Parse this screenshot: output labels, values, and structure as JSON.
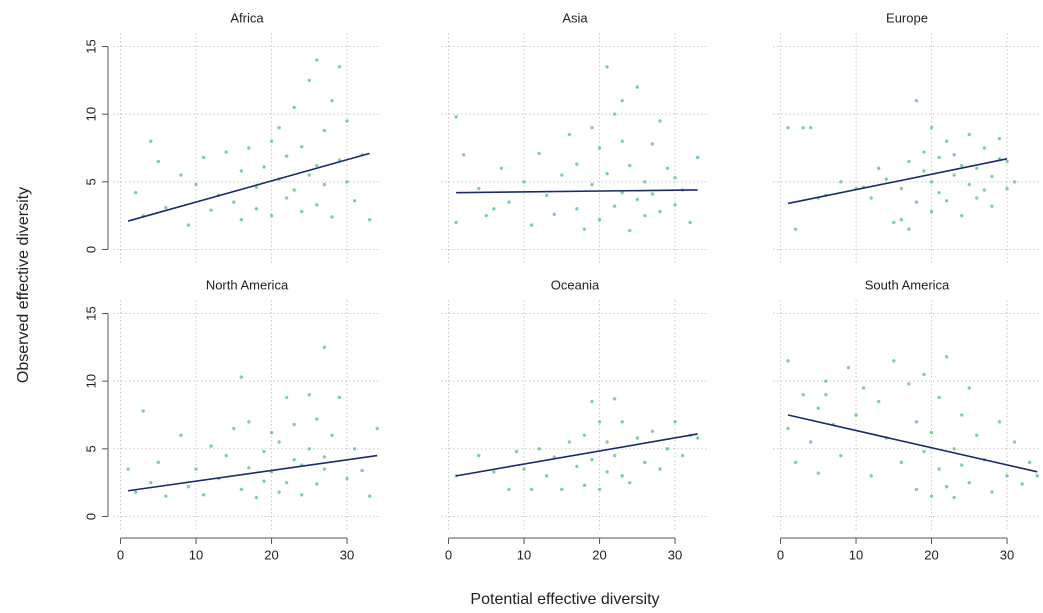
{
  "xlabel": "Potential effective diversity",
  "ylabel": "Observed effective diversity",
  "xlim": [
    -1,
    34.5
  ],
  "ylim": [
    -1,
    16
  ],
  "xticks": [
    0,
    10,
    20,
    30
  ],
  "yticks": [
    0,
    5,
    10,
    15
  ],
  "grid": true,
  "chart_data": [
    {
      "type": "scatter",
      "title": "Africa",
      "color": "#6cc49c",
      "x": [
        2,
        3,
        5,
        6,
        8,
        9,
        11,
        12,
        13,
        14,
        15,
        16,
        16,
        17,
        18,
        18,
        19,
        20,
        20,
        21,
        21,
        22,
        22,
        23,
        23,
        24,
        24,
        25,
        25,
        26,
        26,
        26,
        27,
        27,
        28,
        28,
        29,
        29,
        30,
        30,
        31,
        32,
        4,
        10,
        33
      ],
      "values": [
        4.2,
        2.5,
        6.5,
        3.1,
        5.5,
        1.8,
        6.8,
        2.9,
        4.0,
        7.2,
        3.5,
        5.8,
        2.2,
        7.5,
        4.6,
        3.0,
        6.1,
        8.0,
        2.5,
        5.2,
        9.0,
        3.8,
        6.9,
        4.4,
        10.5,
        2.8,
        7.6,
        5.5,
        12.5,
        3.3,
        6.2,
        14.0,
        8.8,
        4.8,
        11.0,
        2.4,
        6.6,
        13.5,
        5.0,
        9.5,
        3.6,
        7.0,
        8.0,
        4.8,
        2.2
      ],
      "trend": {
        "x": [
          1,
          33
        ],
        "values": [
          2.1,
          7.1
        ],
        "color": "#1b2a6e"
      }
    },
    {
      "type": "scatter",
      "title": "Asia",
      "color": "#6cc49c",
      "x": [
        1,
        1,
        2,
        4,
        5,
        7,
        8,
        10,
        11,
        12,
        13,
        14,
        15,
        16,
        17,
        17,
        18,
        19,
        19,
        20,
        20,
        21,
        21,
        22,
        22,
        23,
        23,
        24,
        24,
        25,
        25,
        26,
        26,
        27,
        27,
        28,
        28,
        29,
        30,
        30,
        31,
        32,
        33,
        6,
        23
      ],
      "values": [
        9.8,
        2.0,
        7.0,
        4.5,
        2.5,
        6.0,
        3.5,
        5.0,
        1.8,
        7.1,
        4.0,
        2.6,
        5.5,
        8.5,
        3.0,
        6.3,
        1.5,
        4.8,
        9.0,
        2.2,
        7.5,
        5.6,
        13.5,
        3.2,
        10.0,
        4.2,
        8.0,
        1.4,
        6.2,
        3.7,
        12.0,
        5.0,
        2.5,
        7.8,
        4.1,
        9.5,
        2.8,
        6.0,
        3.3,
        5.3,
        4.4,
        2.0,
        6.8,
        3.0,
        11.0
      ],
      "trend": {
        "x": [
          1,
          33
        ],
        "values": [
          4.2,
          4.4
        ],
        "color": "#1b2a6e"
      }
    },
    {
      "type": "scatter",
      "title": "Europe",
      "color": "#6cc49c",
      "x": [
        1,
        2,
        3,
        4,
        6,
        8,
        10,
        12,
        13,
        14,
        15,
        16,
        17,
        17,
        18,
        18,
        19,
        19,
        20,
        20,
        21,
        21,
        22,
        22,
        23,
        23,
        24,
        24,
        25,
        25,
        26,
        26,
        27,
        27,
        28,
        28,
        29,
        29,
        30,
        30,
        31,
        5,
        11,
        16,
        20
      ],
      "values": [
        9.0,
        1.5,
        9.0,
        9.0,
        4.0,
        5.0,
        4.5,
        3.8,
        6.0,
        5.2,
        2.0,
        4.5,
        1.5,
        6.5,
        11.0,
        3.5,
        5.8,
        7.2,
        2.8,
        5.0,
        6.8,
        4.2,
        8.0,
        3.6,
        5.5,
        7.0,
        2.5,
        6.2,
        4.8,
        8.5,
        3.8,
        6.0,
        7.5,
        4.4,
        5.4,
        3.2,
        6.7,
        8.2,
        4.5,
        6.5,
        5.0,
        3.8,
        4.6,
        2.2,
        9.0
      ],
      "trend": {
        "x": [
          1,
          30
        ],
        "values": [
          3.4,
          6.7
        ],
        "color": "#1b2a6e"
      }
    },
    {
      "type": "scatter",
      "title": "North America",
      "color": "#6cc49c",
      "x": [
        1,
        2,
        3,
        4,
        5,
        6,
        8,
        9,
        10,
        11,
        12,
        13,
        14,
        15,
        16,
        17,
        17,
        18,
        19,
        19,
        20,
        20,
        21,
        21,
        22,
        22,
        23,
        23,
        24,
        24,
        25,
        25,
        26,
        26,
        27,
        27,
        28,
        29,
        30,
        31,
        32,
        33,
        34,
        16,
        27
      ],
      "values": [
        3.5,
        1.8,
        7.8,
        2.5,
        4.0,
        1.5,
        6.0,
        2.2,
        3.5,
        1.6,
        5.2,
        2.8,
        4.5,
        6.5,
        2.0,
        3.6,
        7.0,
        1.4,
        4.8,
        2.6,
        6.2,
        3.3,
        1.8,
        5.5,
        8.8,
        2.5,
        4.2,
        6.8,
        1.6,
        3.8,
        9.0,
        5.0,
        2.4,
        7.2,
        12.5,
        3.5,
        6.0,
        8.8,
        2.8,
        5.0,
        3.4,
        1.5,
        6.5,
        10.3,
        4.4
      ],
      "trend": {
        "x": [
          1,
          34
        ],
        "values": [
          1.9,
          4.5
        ],
        "color": "#1b2a6e"
      }
    },
    {
      "type": "scatter",
      "title": "Oceania",
      "color": "#6cc49c",
      "x": [
        1,
        4,
        6,
        8,
        9,
        10,
        11,
        12,
        13,
        14,
        15,
        16,
        17,
        18,
        18,
        19,
        20,
        20,
        21,
        21,
        22,
        22,
        23,
        24,
        25,
        26,
        27,
        28,
        29,
        30,
        31,
        32,
        33,
        19,
        23
      ],
      "values": [
        3.0,
        4.5,
        3.3,
        2.0,
        4.8,
        3.5,
        2.0,
        5.0,
        3.0,
        4.4,
        2.0,
        5.5,
        3.7,
        2.3,
        6.0,
        4.2,
        7.0,
        2.0,
        5.5,
        3.3,
        8.7,
        4.5,
        7.0,
        2.5,
        5.8,
        4.0,
        6.3,
        3.5,
        5.0,
        7.0,
        4.5,
        6.0,
        5.8,
        8.5,
        3.0
      ],
      "trend": {
        "x": [
          1,
          33
        ],
        "values": [
          3.0,
          6.1
        ],
        "color": "#1b2a6e"
      }
    },
    {
      "type": "scatter",
      "title": "South America",
      "color": "#6cc49c",
      "x": [
        1,
        1,
        2,
        3,
        4,
        5,
        5,
        6,
        7,
        8,
        9,
        10,
        11,
        12,
        13,
        14,
        15,
        16,
        17,
        18,
        18,
        19,
        19,
        20,
        20,
        21,
        21,
        22,
        22,
        23,
        23,
        24,
        24,
        25,
        25,
        26,
        27,
        28,
        29,
        30,
        31,
        32,
        33,
        34,
        6
      ],
      "values": [
        6.5,
        11.5,
        4.0,
        9.0,
        5.5,
        3.2,
        8.0,
        10.0,
        6.8,
        4.5,
        11.0,
        7.5,
        9.5,
        3.0,
        8.5,
        5.8,
        11.5,
        4.0,
        9.8,
        2.0,
        7.0,
        4.8,
        10.5,
        1.5,
        6.2,
        3.5,
        8.8,
        2.2,
        11.8,
        5.0,
        1.4,
        7.5,
        3.8,
        9.5,
        2.5,
        6.0,
        4.2,
        1.8,
        7.0,
        3.0,
        5.5,
        2.4,
        4.0,
        3.0,
        9.0
      ],
      "trend": {
        "x": [
          1,
          34
        ],
        "values": [
          7.5,
          3.3
        ],
        "color": "#1b2a6e"
      }
    }
  ]
}
